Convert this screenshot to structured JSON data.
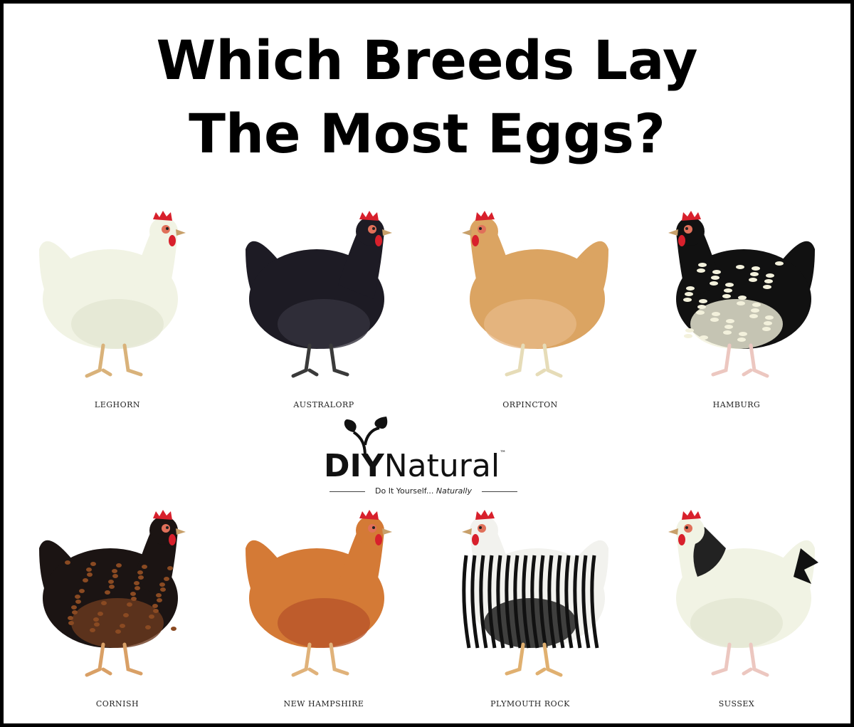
{
  "title": {
    "line1": "Which Breeds Lay",
    "line2": "The Most Eggs?"
  },
  "logo": {
    "bold": "DIY",
    "light": "Natural",
    "tm": "™",
    "tagline": "Do It Yourself...",
    "tagline_italic": "Naturally",
    "icon": "sprout-icon"
  },
  "breeds": [
    {
      "name": "LEGHORN",
      "body": "#f1f3e4",
      "shade": "#e3e6d2",
      "face": "right",
      "pattern": "none",
      "leg": "#d9b27a"
    },
    {
      "name": "AUSTRALORP",
      "body": "#1d1b24",
      "shade": "#35323d",
      "face": "right",
      "pattern": "none",
      "leg": "#3a3a3a"
    },
    {
      "name": "ORPINCTON",
      "body": "#dba462",
      "shade": "#e6b886",
      "face": "left",
      "pattern": "none",
      "leg": "#e6dcb8"
    },
    {
      "name": "HAMBURG",
      "body": "#111111",
      "shade": "#f3f1dc",
      "face": "left",
      "pattern": "spots",
      "leg": "#ecc7c0"
    },
    {
      "name": "CORNISH",
      "body": "#1b1413",
      "shade": "#6b3a1f",
      "face": "right",
      "pattern": "scales",
      "leg": "#d9a066"
    },
    {
      "name": "NEW HAMPSHIRE",
      "body": "#d47a36",
      "shade": "#b8552a",
      "face": "right",
      "pattern": "none",
      "leg": "#e0b27a"
    },
    {
      "name": "PLYMOUTH  ROCK",
      "body": "#f2f2ee",
      "shade": "#111111",
      "face": "left",
      "pattern": "bars",
      "leg": "#e0b070"
    },
    {
      "name": "SUSSEX",
      "body": "#f1f3e4",
      "shade": "#e3e6d2",
      "face": "left",
      "pattern": "collar",
      "leg": "#ecc7c0"
    }
  ],
  "colors": {
    "comb": "#d8202c",
    "beak": "#c8a06a",
    "border": "#000000"
  }
}
